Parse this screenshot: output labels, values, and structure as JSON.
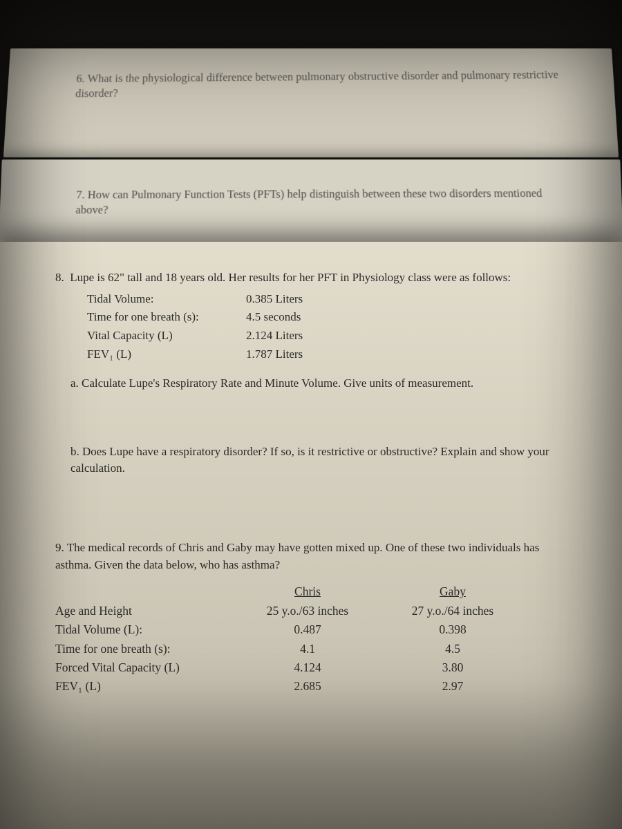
{
  "colors": {
    "background_dark": "#0a0a0a",
    "paper_top": "#e2ddcc",
    "paper_mid": "#d7d2c1",
    "paper_low": "#c8c3b2",
    "paper_shadow": "#a9a493",
    "text": "#2a2a2a"
  },
  "typography": {
    "family": "Times New Roman",
    "body_pt": 13,
    "line_height": 1.45
  },
  "q6": {
    "num": "6.",
    "text": "What is the physiological difference between pulmonary obstructive disorder and pulmonary restrictive disorder?"
  },
  "q7": {
    "num": "7.",
    "text": "How can Pulmonary Function Tests (PFTs) help distinguish between these two disorders mentioned above?"
  },
  "q8": {
    "num": "8.",
    "lede": "Lupe is 62\" tall and 18 years old. Her results for her PFT in Physiology class were as follows:",
    "rows": [
      {
        "label": "Tidal Volume:",
        "value": "0.385 Liters"
      },
      {
        "label": "Time for one breath (s):",
        "value": "4.5 seconds"
      },
      {
        "label": "Vital Capacity (L)",
        "value": "2.124   Liters"
      },
      {
        "label": "FEV₁ (L)",
        "value": "1.787 Liters"
      }
    ],
    "a": "a. Calculate Lupe's Respiratory Rate and Minute Volume.  Give units of measurement.",
    "b": "b. Does Lupe have a respiratory disorder?  If so, is it restrictive or obstructive?  Explain and show your calculation."
  },
  "q9": {
    "num": "9.",
    "lede": "The medical records of Chris and Gaby may have gotten mixed up.  One of these two individuals has asthma.  Given the data below, who has asthma?",
    "headers": {
      "col1": "",
      "chris": "Chris",
      "gaby": "Gaby"
    },
    "rows": [
      {
        "label": "Age and Height",
        "chris": "25 y.o./63 inches",
        "gaby": "27 y.o./64 inches"
      },
      {
        "label": "Tidal Volume (L):",
        "chris": "0.487",
        "gaby": "0.398"
      },
      {
        "label": "Time for one breath (s):",
        "chris": "4.1",
        "gaby": "4.5"
      },
      {
        "label": "Forced Vital Capacity (L)",
        "chris": "4.124",
        "gaby": "3.80"
      },
      {
        "label": "FEV₁ (L)",
        "chris": "2.685",
        "gaby": "2.97"
      }
    ]
  }
}
